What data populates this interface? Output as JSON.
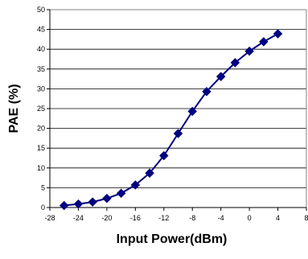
{
  "chart_data": {
    "type": "line",
    "title": "",
    "xlabel": "Input Power(dBm)",
    "ylabel": "PAE (%)",
    "xlim": [
      -28,
      8
    ],
    "ylim": [
      0,
      50
    ],
    "x_ticks": [
      -28,
      -24,
      -20,
      -16,
      -12,
      -8,
      -4,
      0,
      4,
      8
    ],
    "y_ticks": [
      0,
      5,
      10,
      15,
      20,
      25,
      30,
      35,
      40,
      45,
      50
    ],
    "x_tick_labels": [
      "-28",
      "-24",
      "-20",
      "-16",
      "-12",
      "-8",
      "-4",
      "0",
      "4",
      "8"
    ],
    "y_tick_labels": [
      "0",
      "5",
      "10",
      "15",
      "20",
      "25",
      "30",
      "35",
      "40",
      "45",
      "50"
    ],
    "grid": "horizontal",
    "legend": "none",
    "series": [
      {
        "color": "#000080",
        "marker": "diamond",
        "x": [
          -26,
          -24,
          -22,
          -20,
          -18,
          -16,
          -14,
          -12,
          -10,
          -8,
          -6,
          -4,
          -2,
          0,
          2,
          4
        ],
        "y": [
          0.5,
          0.9,
          1.4,
          2.3,
          3.6,
          5.7,
          8.7,
          13.1,
          18.7,
          24.3,
          29.3,
          33.1,
          36.6,
          39.5,
          41.9,
          43.9
        ]
      }
    ]
  }
}
